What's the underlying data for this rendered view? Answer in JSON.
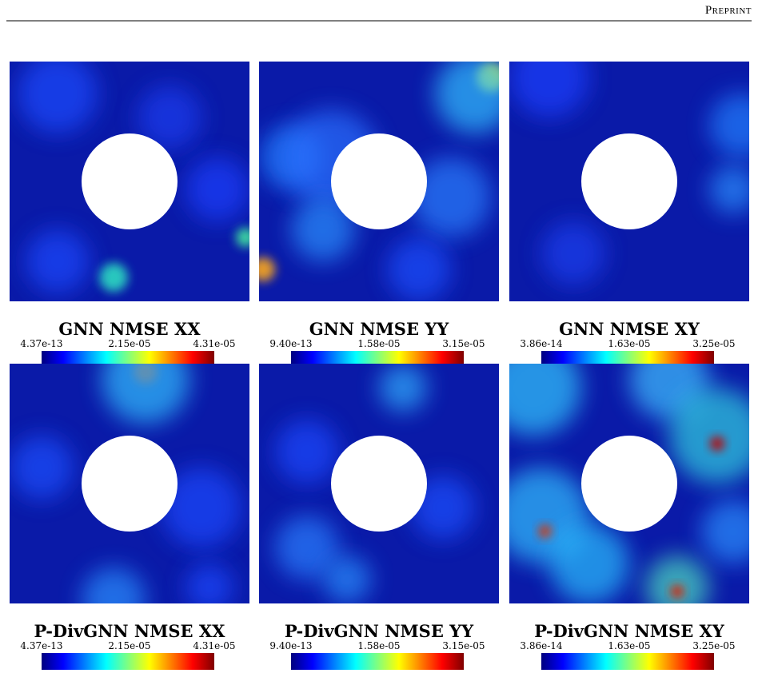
{
  "header": {
    "label": "Preprint"
  },
  "panels": [
    {
      "title": "GNN NMSE XX",
      "colorbar": {
        "min": "4.37e-13",
        "mid": "2.15e-05",
        "max": "4.31e-05"
      }
    },
    {
      "title": "GNN NMSE YY",
      "colorbar": {
        "min": "9.40e-13",
        "mid": "1.58e-05",
        "max": "3.15e-05"
      }
    },
    {
      "title": "GNN NMSE XY",
      "colorbar": {
        "min": "3.86e-14",
        "mid": "1.63e-05",
        "max": "3.25e-05"
      }
    },
    {
      "title": "P-DivGNN NMSE XX",
      "colorbar": {
        "min": "4.37e-13",
        "mid": "2.15e-05",
        "max": "4.31e-05"
      }
    },
    {
      "title": "P-DivGNN NMSE YY",
      "colorbar": {
        "min": "9.40e-13",
        "mid": "1.58e-05",
        "max": "3.15e-05"
      }
    },
    {
      "title": "P-DivGNN NMSE XY",
      "colorbar": {
        "min": "3.86e-14",
        "mid": "1.63e-05",
        "max": "3.25e-05"
      }
    }
  ]
}
